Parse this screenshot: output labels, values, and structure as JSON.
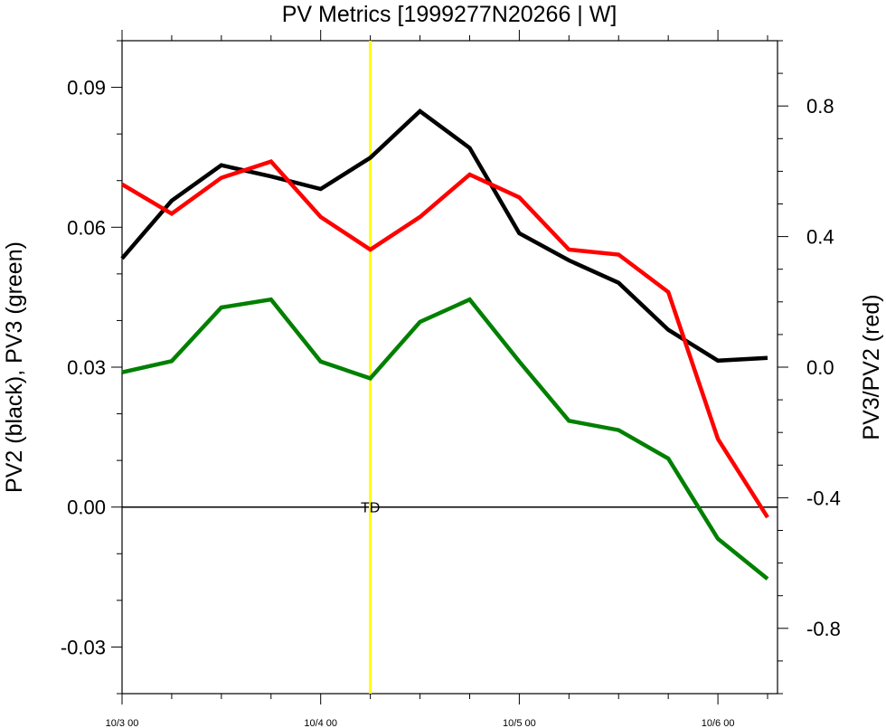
{
  "chart_data": {
    "type": "line",
    "title": "PV Metrics [1999277N20266 | W]",
    "ylabel_left": "PV2 (black), PV3 (green)",
    "ylabel_right": "PV3/PV2 (red)",
    "xlabel": "",
    "x": [
      0,
      0.25,
      0.5,
      0.75,
      1.0,
      1.25,
      1.5,
      1.75,
      2.0,
      2.25,
      2.5,
      2.75,
      3.0,
      3.25
    ],
    "x_ticks": [
      {
        "value": 0,
        "label": "10/3 00"
      },
      {
        "value": 1,
        "label": "10/4 00"
      },
      {
        "value": 2,
        "label": "10/5 00"
      },
      {
        "value": 3,
        "label": "10/6 00"
      }
    ],
    "xlim": [
      0,
      3.3
    ],
    "ylim_left": [
      -0.04,
      0.1
    ],
    "ylim_right": [
      -1.0,
      1.0
    ],
    "yticks_left": [
      {
        "value": -0.03,
        "label": "-0.03"
      },
      {
        "value": 0.0,
        "label": "0.00"
      },
      {
        "value": 0.03,
        "label": "0.03"
      },
      {
        "value": 0.06,
        "label": "0.06"
      },
      {
        "value": 0.09,
        "label": "0.09"
      }
    ],
    "yticks_right": [
      {
        "value": -0.8,
        "label": "-0.8"
      },
      {
        "value": -0.4,
        "label": "-0.4"
      },
      {
        "value": 0.0,
        "label": "0.0"
      },
      {
        "value": 0.4,
        "label": "0.4"
      },
      {
        "value": 0.8,
        "label": "0.8"
      }
    ],
    "series": [
      {
        "axis": "left",
        "color": "#000000",
        "values": [
          0.0533,
          0.0657,
          0.0733,
          0.0709,
          0.0682,
          0.0749,
          0.0849,
          0.077,
          0.0587,
          0.0529,
          0.0481,
          0.038,
          0.0314,
          0.032
        ]
      },
      {
        "axis": "left",
        "color": "#008000",
        "values": [
          0.0289,
          0.0313,
          0.0428,
          0.0445,
          0.0312,
          0.0276,
          0.0397,
          0.0445,
          0.0312,
          0.0185,
          0.0165,
          0.0104,
          -0.0068,
          -0.0154
        ]
      },
      {
        "axis": "right",
        "color": "#ff0000",
        "values": [
          0.56,
          0.47,
          0.58,
          0.63,
          0.46,
          0.36,
          0.46,
          0.59,
          0.52,
          0.36,
          0.345,
          0.23,
          -0.22,
          -0.46
        ]
      }
    ],
    "reference_line": {
      "axis": "left",
      "value": 0.0,
      "color": "#000000"
    },
    "vertical_marker": {
      "x": 1.25,
      "color": "#ffff00",
      "label": "TD"
    },
    "grid": false,
    "legend": "none"
  }
}
